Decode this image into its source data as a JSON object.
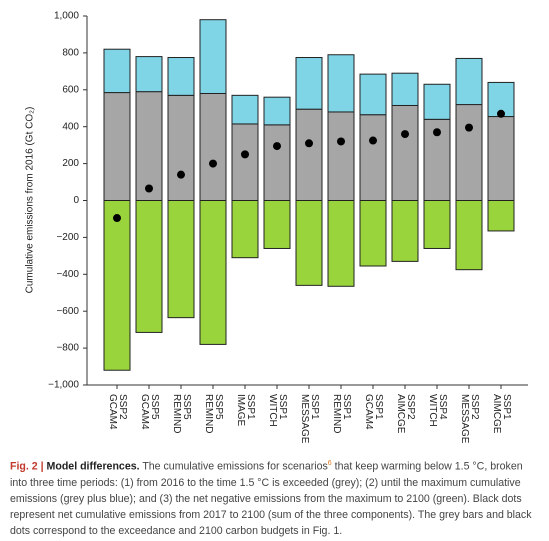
{
  "chart_data": {
    "type": "stacked_bar",
    "ylabel": "Cumulative emissions from 2016 (Gt CO₂)",
    "categories": [
      "SSP2 GCAM4",
      "SSP5 GCAM4",
      "SSP5 REMIND",
      "SSP5 REMIND",
      "SSP1 IMAGE",
      "SSP1 WITCH",
      "SSP1 MESSAGE",
      "SSP1 REMIND",
      "SSP1 GCAM4",
      "SSP2 AIMCGE",
      "SSP4 WITCH",
      "SSP2 MESSAGE",
      "SSP1 AIMCGE"
    ],
    "series": [
      {
        "color": "#a6a6a6",
        "values": [
          585,
          590,
          570,
          580,
          415,
          410,
          495,
          480,
          465,
          515,
          440,
          520,
          455
        ]
      },
      {
        "color": "#7fd4e6",
        "values": [
          235,
          190,
          205,
          400,
          155,
          150,
          280,
          310,
          220,
          175,
          190,
          250,
          185
        ]
      },
      {
        "color": "#99d43c",
        "values": [
          -920,
          -715,
          -635,
          -780,
          -310,
          -260,
          -460,
          -465,
          -355,
          -330,
          -260,
          -375,
          -165
        ]
      }
    ],
    "dots": {
      "color": "#000000",
      "values": [
        -95,
        65,
        140,
        200,
        250,
        295,
        310,
        320,
        325,
        360,
        370,
        395,
        470
      ]
    },
    "ylim": [
      -1000,
      1000
    ],
    "yticks": [
      {
        "value": -1000,
        "label": "−1,000"
      },
      {
        "value": -800,
        "label": "−800"
      },
      {
        "value": -600,
        "label": "−600"
      },
      {
        "value": -400,
        "label": "−400"
      },
      {
        "value": -200,
        "label": "−200"
      },
      0,
      200,
      400,
      600,
      800,
      {
        "value": 1000,
        "label": "1,000"
      }
    ]
  },
  "caption": {
    "figure": "Fig. 2 |",
    "title": "Model differences.",
    "text_before": "The cumulative emissions for scenarios",
    "ref": "6",
    "text_after": "that keep warming below 1.5 °C, broken into three time periods: (1) from 2016 to the time 1.5 °C is exceeded (grey); (2) until the maximum cumulative emissions (grey plus blue); and (3) the net negative emissions from the maximum to 2100 (green). Black dots represent net cumulative emissions from 2017 to 2100 (sum of the three components). The grey bars and black dots correspond to the exceedance and 2100 carbon budgets in Fig. 1."
  }
}
